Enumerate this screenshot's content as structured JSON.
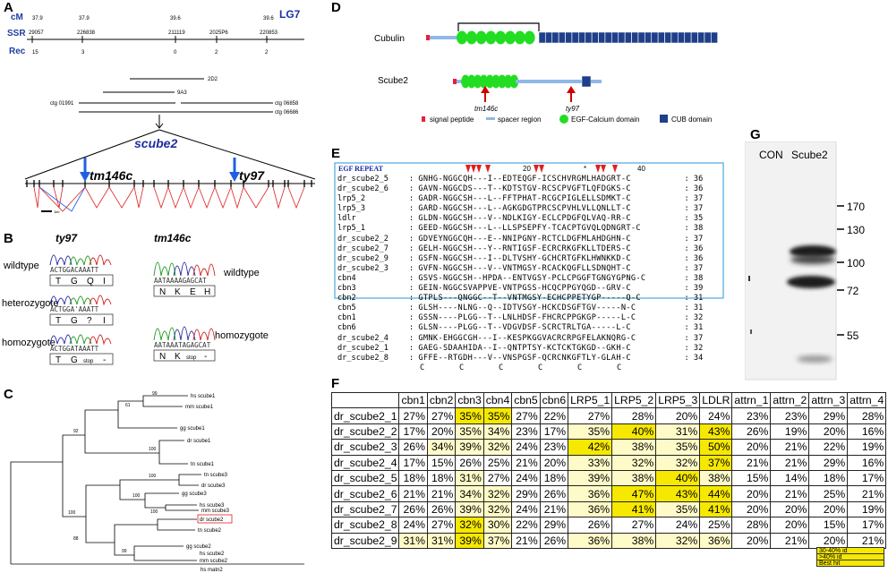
{
  "panelA": {
    "label": "A",
    "lg": "LG7",
    "row_labels": [
      "cM",
      "SSR",
      "Rec"
    ],
    "cM": [
      "37.9",
      "37.9",
      "39.6",
      "39.6"
    ],
    "ssr": [
      "29057",
      "226838",
      "211119",
      "2025P6",
      "220853"
    ],
    "rec": [
      "15",
      "3",
      "0",
      "2",
      "2"
    ],
    "clones": [
      "2D2",
      "9A3",
      "ctg 01991",
      "ctg 06858",
      "ctg 06686"
    ],
    "gene": "scube2",
    "alleles": [
      "tm146c",
      "ty97"
    ],
    "scale": "1kb"
  },
  "panelB": {
    "label": "B",
    "ty97_title": "ty97",
    "tm146c_title": "tm146c",
    "left_genotypes": [
      "wildtype",
      "heterozygote",
      "homozygote"
    ],
    "right_genotypes": [
      "wildtype",
      "homozygote"
    ],
    "ty97_wt_seq": "ACTGGACAAATT",
    "ty97_wt_aa": [
      "T",
      "G",
      "Q",
      "I"
    ],
    "ty97_het_seq": "ACTGGA'AAATT",
    "ty97_het_aa": [
      "T",
      "G",
      "?",
      "I"
    ],
    "ty97_hom_seq": "ACTGGATAAATT",
    "ty97_hom_aa": [
      "T",
      "G",
      "stop",
      "-"
    ],
    "tm_wt_seq": "AATAAAAGAGCAT",
    "tm_wt_aa": [
      "N",
      "K",
      "E",
      "H"
    ],
    "tm_hom_seq": "AATAAATAGAGCAT",
    "tm_hom_aa": [
      "N",
      "K",
      "stop",
      "-"
    ]
  },
  "panelC": {
    "label": "C",
    "taxa": [
      "hs scube1",
      "mm scube1",
      "gg scube1",
      "dr scube1",
      "tn scube1",
      "tn scube3",
      "dr scube3",
      "gg scube3",
      "hs scube3",
      "mm scube3",
      "dr scube2",
      "tn scube2",
      "gg scube2",
      "hs scube2",
      "mm scube2",
      "hs matn2"
    ],
    "bootstrap": [
      "99",
      "61",
      "92",
      "100",
      "100",
      "100",
      "100",
      "100",
      "88",
      "99"
    ]
  },
  "panelD": {
    "label": "D",
    "proteins": [
      "Cubulin",
      "Scube2"
    ],
    "mutants": [
      "tm146c",
      "ty97"
    ],
    "legend": [
      "signal peptide",
      "spacer region",
      "EGF-Calcium domain",
      "CUB domain"
    ],
    "colors": {
      "signal": "#e8203a",
      "spacer": "#8fb8e8",
      "egf": "#22dd22",
      "cub": "#1f3f8a",
      "arrow": "#cc0000"
    }
  },
  "panelE": {
    "label": "E",
    "box_title": "EGF REPEAT",
    "ruler": [
      "*",
      "20",
      "*",
      "40"
    ],
    "names": [
      "dr_scube2_5",
      "dr_scube2_6",
      "lrp5_2",
      "lrp5_3",
      "ldlr",
      "lrp5_1",
      "dr_scube2_2",
      "dr_scube2_7",
      "dr_scube2_9",
      "dr_scube2_3",
      "cbn4",
      "cbn3",
      "cbn2",
      "cbn5",
      "cbn1",
      "cbn6",
      "dr_scube2_4",
      "dr_scube2_1",
      "dr_scube2_8"
    ],
    "seqs": [
      "GNHG-NGGCQH---I--EDTEQGF-ICSCHVRGMLHADGRT-C",
      "GAVN-NGGCDS---T--KDTSTGV-RCSCPVGFTLQFDGKS-C",
      "GADR-NGGCSH---L--FFTPHAT-RCGCPIGLELLSDMKT-C",
      "GARD-NGGCSH---L--AGKGDGTPRCSCPVHLVLLQNLLT-C",
      "GLDN-NGGCSH---V--NDLKIGY-ECLCPDGFQLVAQ-RR-C",
      "GEED-NGGCSH---L--LLSPSEPFY-TCACPTGVQLQDNGRT-C",
      "GDVEYNGGCQH---E--NNIPGNY-RCTCLDGFMLAHDGHN-C",
      "GELH-NGGCSH---Y--RNTIGSF-ECRCRKGFKLLTDERS-C",
      "GSFN-NGGCSH---I--DLTVSHY-GCHCRTGFKLHWNKKD-C",
      "GVFN-NGGCSH---V--VNTMGSY-RCACKQGFLLSDNQHT-C",
      "GSVS-NGGCSH--HPDA--ENTVGSY-PCLCPGGFTGNGYGPNG-C",
      "GEIN-NGGCSVAPPVE-VNTPGSS-HCQCPPGYQGD--GRV-C",
      "GTPLS---QNGGC--T--VNTMGSY-ECHCPPETYGP-----Q-C",
      "GLSH----NLNG--Q--IDTVSGY-HCKCDSGFTGV-----N-C",
      "GSSN----PLGG--T--LNLHDSF-FHCRCPPGKGP-----L-C",
      "GLSN----PLGG--T--VDGVDSF-SCRCTRLTGA-----L-C",
      "GMNK-EHGGCGH---I--KESPKGGVACRCRPGFELAKNQRG-C",
      "GAEG-SDAAHIDA--I--QNTPTSY-KCTCKTGKGD--GKH-C",
      "GFFE--RTGDH---V--VNSPGSF-QCRCNKGFTLY-GLAH-C"
    ],
    "lengths": [
      "36",
      "36",
      "37",
      "37",
      "35",
      "38",
      "37",
      "36",
      "36",
      "37",
      "38",
      "39",
      "31",
      "31",
      "32",
      "31",
      "37",
      "32",
      "34"
    ],
    "footer": [
      "C",
      "C",
      "C",
      "C",
      "C",
      "C"
    ]
  },
  "panelF": {
    "label": "F",
    "columns": [
      "cbn1",
      "cbn2",
      "cbn3",
      "cbn4",
      "cbn5",
      "cbn6",
      "LRP5_1",
      "LRP5_2",
      "LRP5_3",
      "LDLR",
      "attrn_1",
      "attrn_2",
      "attrn_3",
      "attrn_4"
    ],
    "rows": [
      {
        "name": "dr_scube2_1",
        "values": [
          "27%",
          "27%",
          "35%",
          "35%",
          "27%",
          "22%",
          "27%",
          "28%",
          "20%",
          "24%",
          "23%",
          "23%",
          "29%",
          "28%"
        ],
        "shade": [
          "n",
          "n",
          "h",
          "h",
          "n",
          "n",
          "n",
          "n",
          "n",
          "n",
          "n",
          "n",
          "n",
          "n"
        ]
      },
      {
        "name": "dr_scube2_2",
        "values": [
          "17%",
          "20%",
          "35%",
          "34%",
          "23%",
          "17%",
          "35%",
          "40%",
          "31%",
          "43%",
          "26%",
          "19%",
          "20%",
          "16%"
        ],
        "shade": [
          "n",
          "n",
          "l",
          "l",
          "n",
          "n",
          "l",
          "h",
          "l",
          "h",
          "n",
          "n",
          "n",
          "n"
        ]
      },
      {
        "name": "dr_scube2_3",
        "values": [
          "26%",
          "34%",
          "39%",
          "32%",
          "24%",
          "23%",
          "42%",
          "38%",
          "35%",
          "50%",
          "20%",
          "21%",
          "22%",
          "19%"
        ],
        "shade": [
          "n",
          "l",
          "l",
          "l",
          "n",
          "n",
          "h",
          "l",
          "l",
          "h",
          "n",
          "n",
          "n",
          "n"
        ]
      },
      {
        "name": "dr_scube2_4",
        "values": [
          "17%",
          "15%",
          "26%",
          "25%",
          "21%",
          "20%",
          "33%",
          "32%",
          "32%",
          "37%",
          "21%",
          "21%",
          "29%",
          "16%"
        ],
        "shade": [
          "n",
          "n",
          "n",
          "n",
          "n",
          "n",
          "l",
          "l",
          "l",
          "h",
          "n",
          "n",
          "n",
          "n"
        ]
      },
      {
        "name": "dr_scube2_5",
        "values": [
          "18%",
          "18%",
          "31%",
          "27%",
          "24%",
          "18%",
          "39%",
          "38%",
          "40%",
          "38%",
          "15%",
          "14%",
          "18%",
          "17%"
        ],
        "shade": [
          "n",
          "n",
          "l",
          "n",
          "n",
          "n",
          "l",
          "l",
          "h",
          "l",
          "n",
          "n",
          "n",
          "n"
        ]
      },
      {
        "name": "dr_scube2_6",
        "values": [
          "21%",
          "21%",
          "34%",
          "32%",
          "29%",
          "26%",
          "36%",
          "47%",
          "43%",
          "44%",
          "20%",
          "21%",
          "25%",
          "21%"
        ],
        "shade": [
          "n",
          "n",
          "l",
          "l",
          "n",
          "n",
          "l",
          "h",
          "h",
          "h",
          "n",
          "n",
          "n",
          "n"
        ]
      },
      {
        "name": "dr_scube2_7",
        "values": [
          "26%",
          "26%",
          "39%",
          "32%",
          "24%",
          "21%",
          "36%",
          "41%",
          "35%",
          "41%",
          "20%",
          "20%",
          "20%",
          "19%"
        ],
        "shade": [
          "n",
          "n",
          "l",
          "l",
          "n",
          "n",
          "l",
          "h",
          "l",
          "h",
          "n",
          "n",
          "n",
          "n"
        ]
      },
      {
        "name": "dr_scube2_8",
        "values": [
          "24%",
          "27%",
          "32%",
          "30%",
          "22%",
          "29%",
          "26%",
          "27%",
          "24%",
          "25%",
          "28%",
          "20%",
          "15%",
          "17%"
        ],
        "shade": [
          "n",
          "n",
          "h",
          "l",
          "n",
          "n",
          "n",
          "n",
          "n",
          "n",
          "n",
          "n",
          "n",
          "n"
        ]
      },
      {
        "name": "dr_scube2_9",
        "values": [
          "31%",
          "31%",
          "39%",
          "37%",
          "21%",
          "26%",
          "36%",
          "38%",
          "32%",
          "36%",
          "20%",
          "21%",
          "20%",
          "21%"
        ],
        "shade": [
          "l",
          "l",
          "h",
          "l",
          "n",
          "n",
          "l",
          "l",
          "l",
          "l",
          "n",
          "n",
          "n",
          "n"
        ]
      }
    ],
    "legend": [
      "30-40% id",
      ">40% id",
      "Best hit"
    ],
    "colors": {
      "none": "#ffffff",
      "low": "#fffbc8",
      "high": "#f6e800"
    }
  },
  "panelG": {
    "label": "G",
    "lanes": [
      "CON",
      "Scube2"
    ],
    "markers": [
      "170",
      "130",
      "100",
      "72",
      "55"
    ]
  }
}
